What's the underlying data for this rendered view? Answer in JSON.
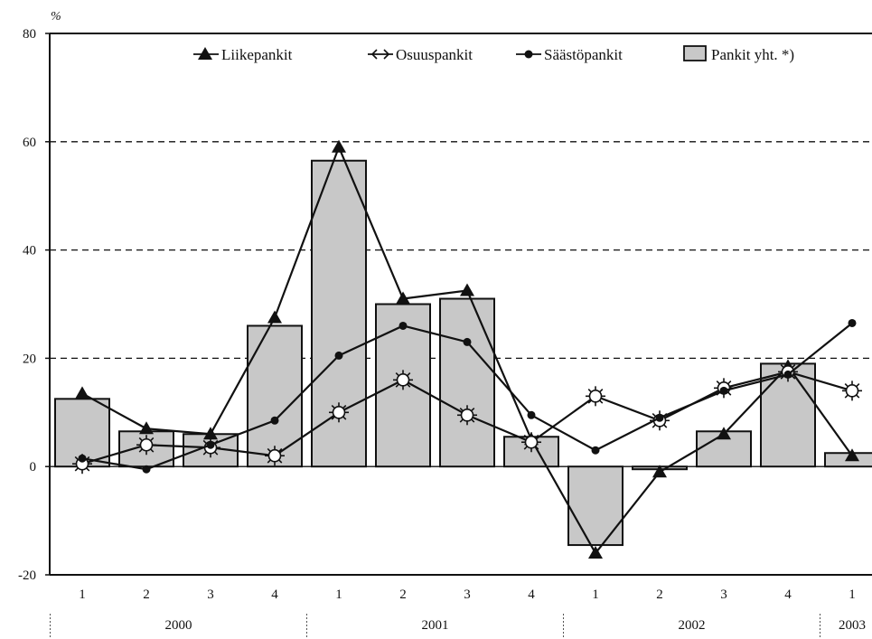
{
  "chart_data": {
    "type": "bar",
    "unit_label": "%",
    "ylim": [
      -20,
      80
    ],
    "yticks": [
      -20,
      0,
      20,
      40,
      60,
      80
    ],
    "dashed_gridlines": [
      20,
      40,
      60
    ],
    "categories": [
      "1",
      "2",
      "3",
      "4",
      "1",
      "2",
      "3",
      "4",
      "1",
      "2",
      "3",
      "4",
      "1"
    ],
    "year_groups": [
      {
        "label": "2000",
        "span": 4
      },
      {
        "label": "2001",
        "span": 4
      },
      {
        "label": "2002",
        "span": 4
      },
      {
        "label": "2003",
        "span": 1
      }
    ],
    "legend_position": "top-center",
    "series": [
      {
        "name": "Liikepankit",
        "type": "line",
        "marker": "triangle",
        "color": "#111111",
        "values": [
          13.5,
          7,
          6,
          27.5,
          59,
          31,
          32.5,
          5,
          -16,
          -1,
          6,
          18.5,
          2
        ]
      },
      {
        "name": "Osuuspankit",
        "type": "line",
        "marker": "sun",
        "color": "#111111",
        "values": [
          0.5,
          4,
          3.5,
          2,
          10,
          16,
          9.5,
          4.5,
          13,
          8.5,
          14.5,
          17.5,
          14
        ]
      },
      {
        "name": "Säästöpankit",
        "type": "line",
        "marker": "dot",
        "color": "#111111",
        "values": [
          1.5,
          -0.5,
          4,
          8.5,
          20.5,
          26,
          23,
          9.5,
          3,
          9,
          14,
          17,
          26.5
        ]
      },
      {
        "name": "Pankit yht. *)",
        "type": "bar",
        "color": "#c8c8c8",
        "values": [
          12.5,
          6.5,
          6,
          26,
          56.5,
          30,
          31,
          5.5,
          -14.5,
          -0.5,
          6.5,
          19,
          2.5
        ]
      }
    ]
  }
}
